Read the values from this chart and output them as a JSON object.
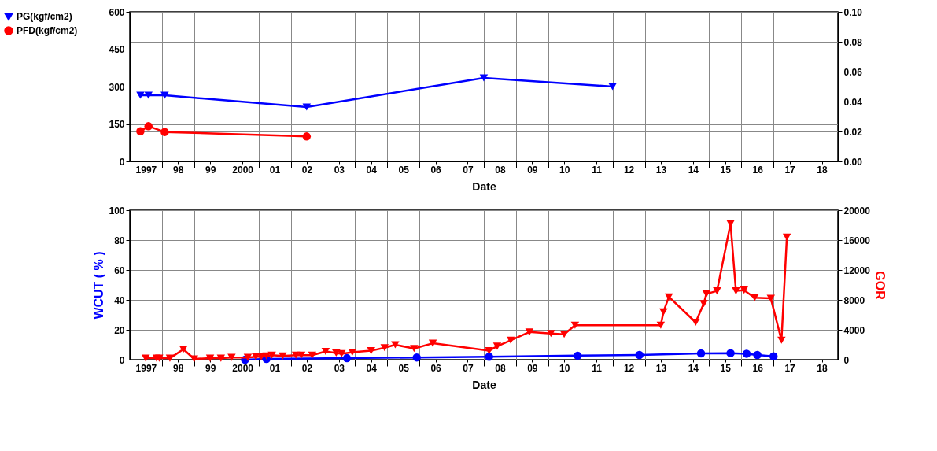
{
  "chart_data": [
    {
      "type": "line",
      "xlabel": "Date",
      "grid": true,
      "legend": "left",
      "xlim": [
        "1997-01-01",
        "2019-01-01"
      ],
      "xticks": [
        {
          "value": "1997-07-02",
          "label": "1997"
        },
        {
          "value": "1998-01-01",
          "label": null
        },
        {
          "value": "1998-07-02",
          "label": "98"
        },
        {
          "value": "1999-01-01",
          "label": null
        },
        {
          "value": "1999-07-02",
          "label": "99"
        },
        {
          "value": "2000-01-01",
          "label": null
        },
        {
          "value": "2000-07-02",
          "label": "2000"
        },
        {
          "value": "2001-01-01",
          "label": null
        },
        {
          "value": "2001-07-02",
          "label": "01"
        },
        {
          "value": "2002-01-01",
          "label": null
        },
        {
          "value": "2002-07-02",
          "label": "02"
        },
        {
          "value": "2003-01-01",
          "label": null
        },
        {
          "value": "2003-07-02",
          "label": "03"
        },
        {
          "value": "2004-01-01",
          "label": null
        },
        {
          "value": "2004-07-02",
          "label": "04"
        },
        {
          "value": "2005-01-01",
          "label": null
        },
        {
          "value": "2005-07-02",
          "label": "05"
        },
        {
          "value": "2006-01-01",
          "label": null
        },
        {
          "value": "2006-07-02",
          "label": "06"
        },
        {
          "value": "2007-01-01",
          "label": null
        },
        {
          "value": "2007-07-02",
          "label": "07"
        },
        {
          "value": "2008-01-01",
          "label": null
        },
        {
          "value": "2008-07-02",
          "label": "08"
        },
        {
          "value": "2009-01-01",
          "label": null
        },
        {
          "value": "2009-07-02",
          "label": "09"
        },
        {
          "value": "2010-01-01",
          "label": null
        },
        {
          "value": "2010-07-02",
          "label": "10"
        },
        {
          "value": "2011-01-01",
          "label": null
        },
        {
          "value": "2011-07-02",
          "label": "11"
        },
        {
          "value": "2012-01-01",
          "label": null
        },
        {
          "value": "2012-07-02",
          "label": "12"
        },
        {
          "value": "2013-01-01",
          "label": null
        },
        {
          "value": "2013-07-02",
          "label": "13"
        },
        {
          "value": "2014-01-01",
          "label": null
        },
        {
          "value": "2014-07-02",
          "label": "14"
        },
        {
          "value": "2015-01-01",
          "label": null
        },
        {
          "value": "2015-07-02",
          "label": "15"
        },
        {
          "value": "2016-01-01",
          "label": null
        },
        {
          "value": "2016-07-02",
          "label": "16"
        },
        {
          "value": "2017-01-01",
          "label": null
        },
        {
          "value": "2017-07-02",
          "label": "17"
        },
        {
          "value": "2018-01-01",
          "label": null
        },
        {
          "value": "2018-07-02",
          "label": "18"
        }
      ],
      "ylim": [
        0,
        600
      ],
      "yticks": [
        0,
        150,
        300,
        450,
        600
      ],
      "y2lim": [
        0,
        0.1
      ],
      "y2ticks": [
        {
          "value": 0,
          "label": "0.00"
        },
        {
          "value": 0.02,
          "label": "0.02"
        },
        {
          "value": 0.04,
          "label": "0.04"
        },
        {
          "value": 0.06,
          "label": "0.06"
        },
        {
          "value": 0.08,
          "label": "0.08"
        },
        {
          "value": 0.1,
          "label": "0.10"
        }
      ],
      "series": [
        {
          "name": "PG(kgf/cm2)",
          "color": "#0000ff",
          "marker": "triangle",
          "x": [
            "1997-05",
            "1997-08",
            "1998-02",
            "2002-07",
            "2008-01",
            "2012-01"
          ],
          "values": [
            265,
            265,
            265,
            218,
            335,
            300
          ]
        },
        {
          "name": "PFD(kgf/cm2)",
          "color": "#ff0000",
          "marker": "circle",
          "x": [
            "1997-05",
            "1997-08",
            "1998-02",
            "2002-07"
          ],
          "values": [
            121,
            141,
            118,
            100
          ]
        }
      ]
    },
    {
      "type": "line",
      "xlabel": "Date",
      "ylabel": "WCUT ( % )",
      "y2label": "GOR",
      "grid": true,
      "xlim": [
        "1997-01-01",
        "2019-01-01"
      ],
      "xticks": [
        {
          "value": "1997-07-02",
          "label": "1997"
        },
        {
          "value": "1998-01-01",
          "label": null
        },
        {
          "value": "1998-07-02",
          "label": "98"
        },
        {
          "value": "1999-01-01",
          "label": null
        },
        {
          "value": "1999-07-02",
          "label": "99"
        },
        {
          "value": "2000-01-01",
          "label": null
        },
        {
          "value": "2000-07-02",
          "label": "2000"
        },
        {
          "value": "2001-01-01",
          "label": null
        },
        {
          "value": "2001-07-02",
          "label": "01"
        },
        {
          "value": "2002-01-01",
          "label": null
        },
        {
          "value": "2002-07-02",
          "label": "02"
        },
        {
          "value": "2003-01-01",
          "label": null
        },
        {
          "value": "2003-07-02",
          "label": "03"
        },
        {
          "value": "2004-01-01",
          "label": null
        },
        {
          "value": "2004-07-02",
          "label": "04"
        },
        {
          "value": "2005-01-01",
          "label": null
        },
        {
          "value": "2005-07-02",
          "label": "05"
        },
        {
          "value": "2006-01-01",
          "label": null
        },
        {
          "value": "2006-07-02",
          "label": "06"
        },
        {
          "value": "2007-01-01",
          "label": null
        },
        {
          "value": "2007-07-02",
          "label": "07"
        },
        {
          "value": "2008-01-01",
          "label": null
        },
        {
          "value": "2008-07-02",
          "label": "08"
        },
        {
          "value": "2009-01-01",
          "label": null
        },
        {
          "value": "2009-07-02",
          "label": "09"
        },
        {
          "value": "2010-01-01",
          "label": null
        },
        {
          "value": "2010-07-02",
          "label": "10"
        },
        {
          "value": "2011-01-01",
          "label": null
        },
        {
          "value": "2011-07-02",
          "label": "11"
        },
        {
          "value": "2012-01-01",
          "label": null
        },
        {
          "value": "2012-07-02",
          "label": "12"
        },
        {
          "value": "2013-01-01",
          "label": null
        },
        {
          "value": "2013-07-02",
          "label": "13"
        },
        {
          "value": "2014-01-01",
          "label": null
        },
        {
          "value": "2014-07-02",
          "label": "14"
        },
        {
          "value": "2015-01-01",
          "label": null
        },
        {
          "value": "2015-07-02",
          "label": "15"
        },
        {
          "value": "2016-01-01",
          "label": null
        },
        {
          "value": "2016-07-02",
          "label": "16"
        },
        {
          "value": "2017-01-01",
          "label": null
        },
        {
          "value": "2017-07-02",
          "label": "17"
        },
        {
          "value": "2018-01-01",
          "label": null
        },
        {
          "value": "2018-07-02",
          "label": "18"
        }
      ],
      "ylim": [
        0,
        100
      ],
      "yticks": [
        0,
        20,
        40,
        60,
        80,
        100
      ],
      "y2lim": [
        0,
        20000
      ],
      "y2ticks": [
        0,
        4000,
        8000,
        12000,
        16000,
        20000
      ],
      "series": [
        {
          "color": "#0000ff",
          "marker": "circle",
          "x": [
            "2000-08",
            "2001-04",
            "2003-10",
            "2005-12",
            "2008-03",
            "2010-12",
            "2012-11",
            "2014-10",
            "2015-09",
            "2016-03",
            "2016-07",
            "2017-01"
          ],
          "values": [
            0,
            0.5,
            1.0,
            1.5,
            2.0,
            2.7,
            3.2,
            4.2,
            4.4,
            4.0,
            3.2,
            2.2
          ]
        },
        {
          "color": "#ff0000",
          "marker": "triangle",
          "axis": "y2",
          "x": [
            "1997-07",
            "1997-11",
            "1997-12",
            "1998-04",
            "1998-09",
            "1999-01",
            "1999-07",
            "1999-11",
            "2000-03",
            "2000-09",
            "2000-12",
            "2001-02",
            "2001-04",
            "2001-06",
            "2001-10",
            "2002-03",
            "2002-05",
            "2002-09",
            "2003-02",
            "2003-06",
            "2003-08",
            "2003-12",
            "2004-07",
            "2004-12",
            "2005-04",
            "2005-11",
            "2006-06",
            "2008-03",
            "2008-06",
            "2008-11",
            "2009-06",
            "2010-02",
            "2010-07",
            "2010-11",
            "2013-07",
            "2013-08",
            "2013-10",
            "2014-08",
            "2014-11",
            "2014-12",
            "2015-04",
            "2015-09",
            "2015-11",
            "2016-02",
            "2016-06",
            "2016-12",
            "2017-04",
            "2017-06"
          ],
          "values": [
            200,
            200,
            200,
            200,
            1400,
            100,
            200,
            200,
            300,
            300,
            400,
            400,
            500,
            600,
            500,
            600,
            600,
            600,
            1100,
            900,
            800,
            1000,
            1200,
            1600,
            2000,
            1500,
            2200,
            1200,
            1800,
            2600,
            3700,
            3500,
            3400,
            4600,
            4600,
            6400,
            8400,
            5000,
            7500,
            8800,
            9200,
            18200,
            9200,
            9300,
            8300,
            8200,
            2600,
            16400
          ]
        }
      ]
    }
  ]
}
